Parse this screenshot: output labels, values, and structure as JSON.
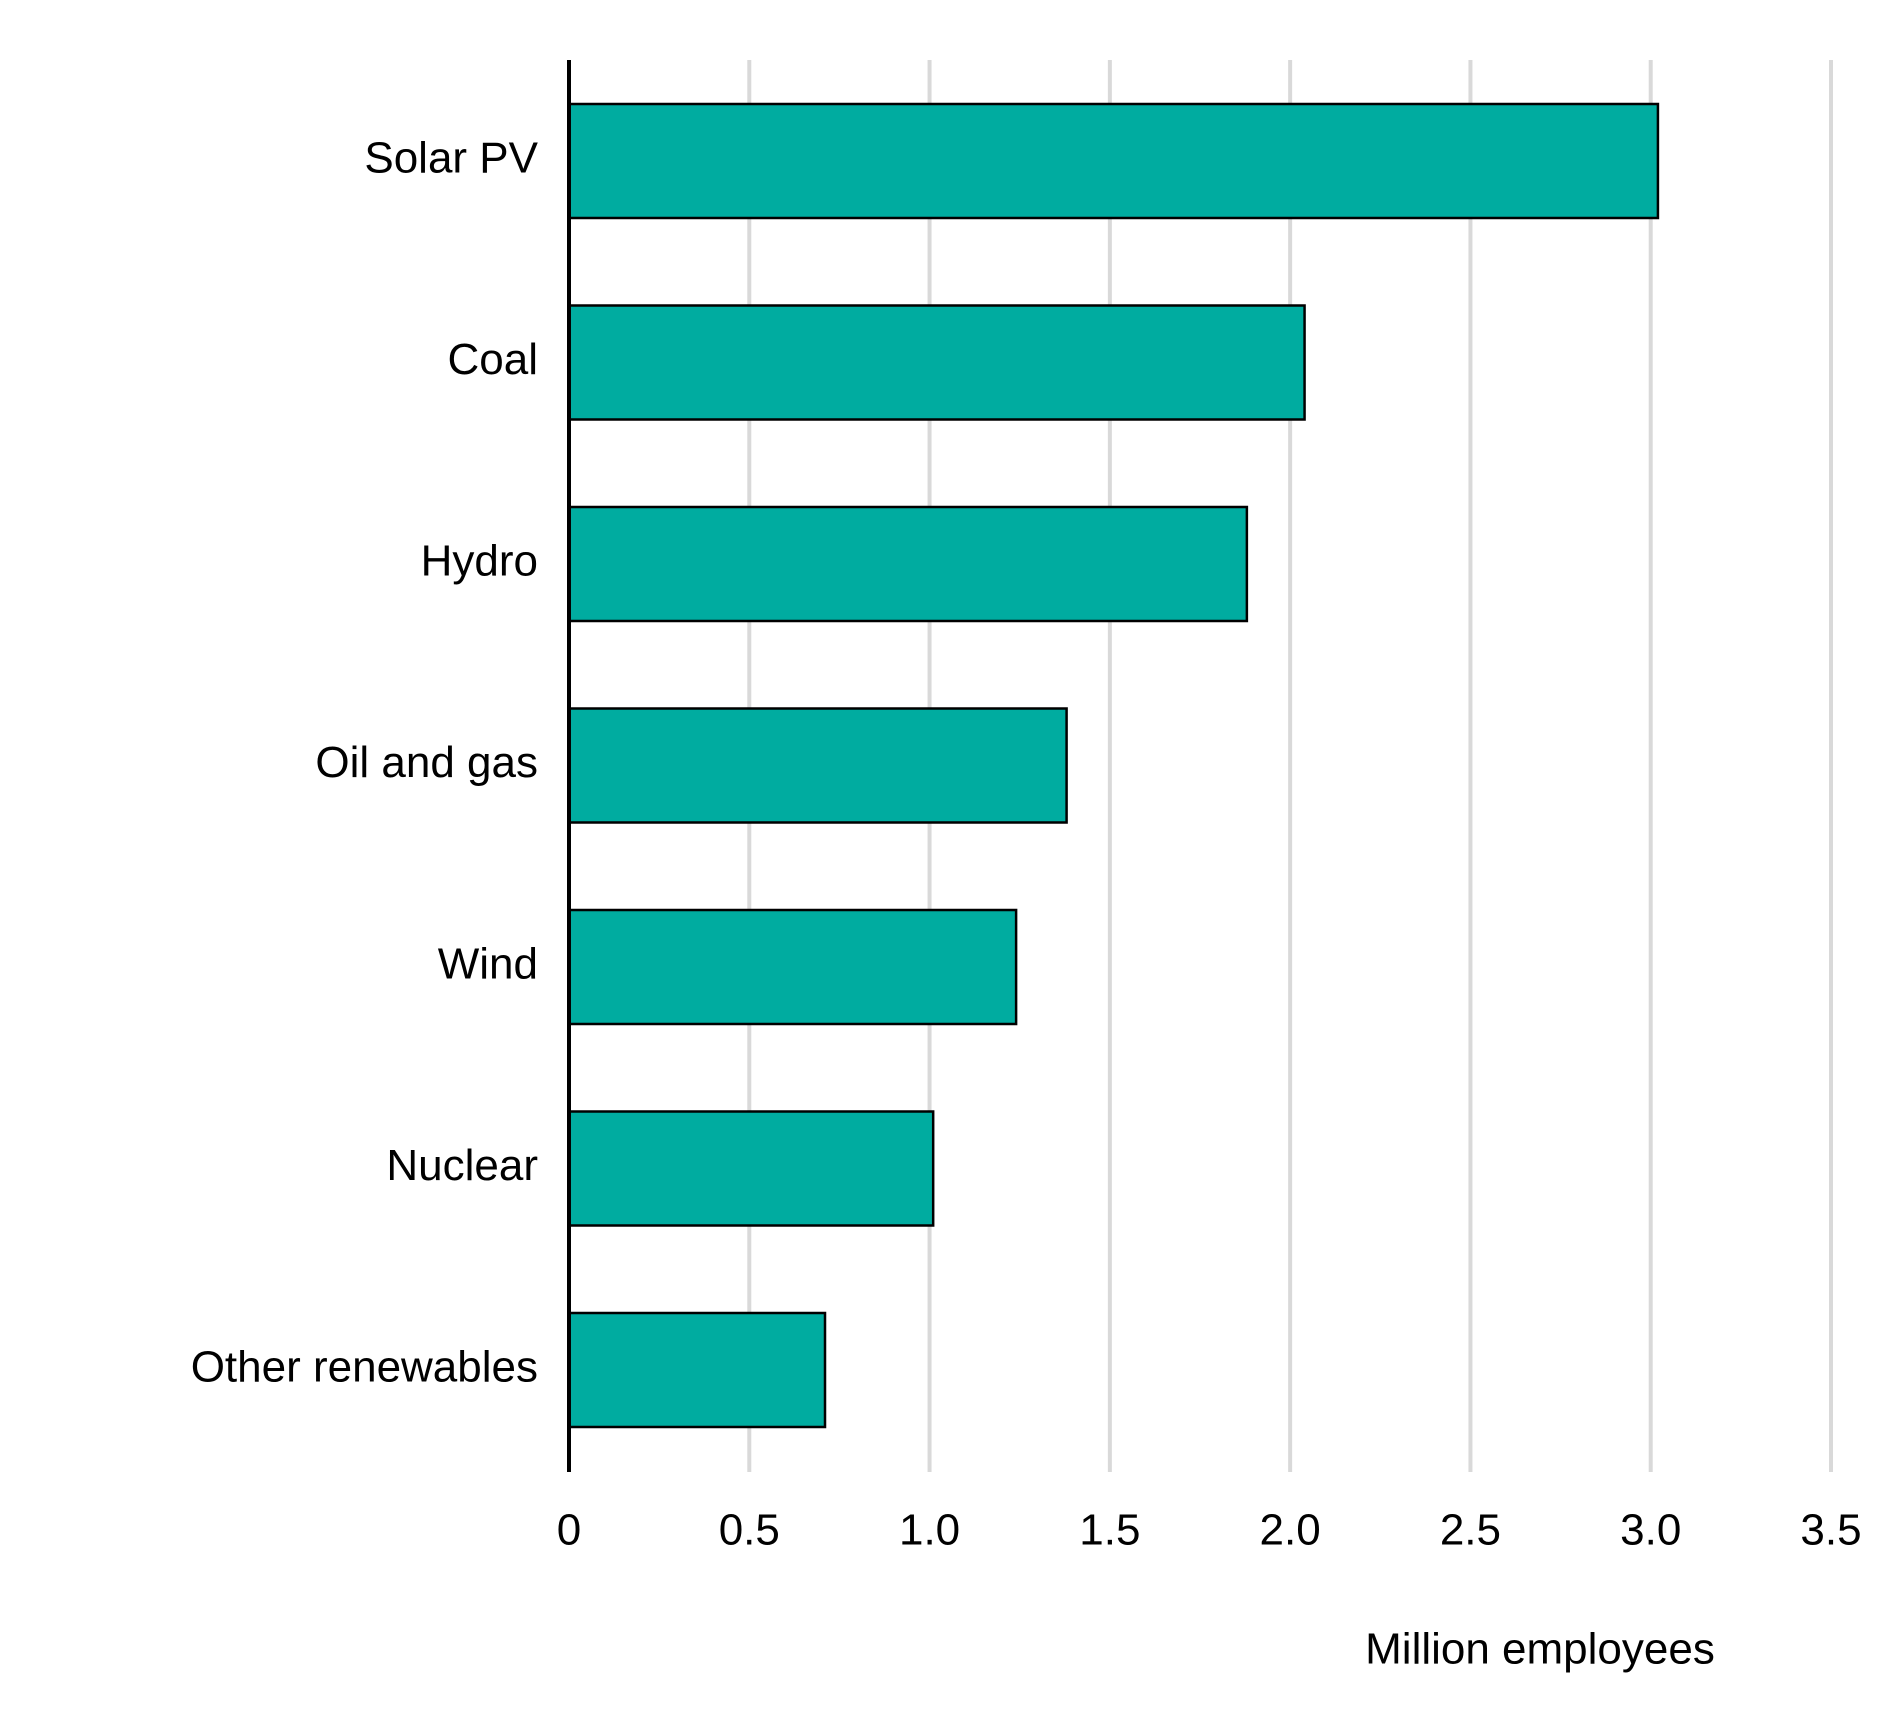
{
  "chart_data": {
    "type": "hbar",
    "x_label": "Million employees",
    "categories": [
      "Solar PV",
      "Coal",
      "Hydro",
      "Oil and gas",
      "Wind",
      "Nuclear",
      "Other renewables"
    ],
    "values": [
      3.02,
      2.04,
      1.88,
      1.38,
      1.24,
      1.01,
      0.71
    ],
    "color": "#00aca0",
    "xlim": [
      0,
      3.5
    ],
    "xticks": [
      0,
      0.5,
      {
        "value": 1,
        "label": "1.0"
      },
      1.5,
      {
        "value": 2,
        "label": "2.0"
      },
      2.5,
      {
        "value": 3,
        "label": "3.0"
      },
      3.5
    ],
    "grid": true
  }
}
